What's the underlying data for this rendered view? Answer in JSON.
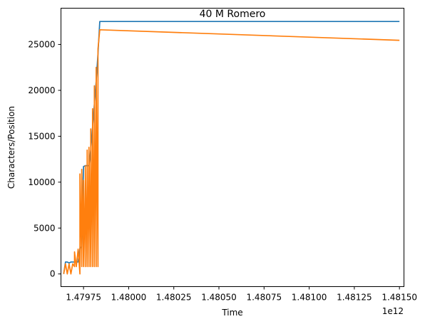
{
  "chart_data": {
    "type": "line",
    "title": "40 M Romero",
    "xlabel": "Time",
    "ylabel": "Characters/Position",
    "x_offset_text": "1e12",
    "xlim": [
      1.479625,
      1.481525
    ],
    "ylim": [
      -1380,
      28950
    ],
    "x_ticks": [
      1.47975,
      1.48,
      1.48025,
      1.4805,
      1.48075,
      1.481,
      1.48125,
      1.4815
    ],
    "x_tick_labels": [
      "1.47975",
      "1.48000",
      "1.48025",
      "1.48050",
      "1.48075",
      "1.48100",
      "1.48125",
      "1.48150"
    ],
    "y_ticks": [
      0,
      5000,
      10000,
      15000,
      20000,
      25000
    ],
    "y_tick_labels": [
      "0",
      "5000",
      "10000",
      "15000",
      "20000",
      "25000"
    ],
    "grid": false,
    "series": [
      {
        "color": "#1f77b4",
        "x": [
          1.47964,
          1.47965,
          1.47966,
          1.47967,
          1.47968,
          1.47969,
          1.4797,
          1.47972,
          1.47973,
          1.47974,
          1.47975,
          1.47976,
          1.47978,
          1.47979,
          1.4798,
          1.47981,
          1.47982,
          1.47983,
          1.47984,
          1.4815
        ],
        "y": [
          0,
          1300,
          1300,
          1200,
          1300,
          1300,
          1300,
          1300,
          2800,
          3000,
          11700,
          11800,
          11800,
          13500,
          16000,
          18500,
          21000,
          24000,
          27500,
          27500
        ]
      },
      {
        "color": "#ff7f0e",
        "x": [
          1.47964,
          1.47965,
          1.47966,
          1.47967,
          1.47968,
          1.47969,
          1.4797,
          1.4797,
          1.47971,
          1.47972,
          1.47973,
          1.47973,
          1.47974,
          1.47974,
          1.47975,
          1.47975,
          1.47976,
          1.47976,
          1.47977,
          1.47977,
          1.47978,
          1.47978,
          1.47979,
          1.47979,
          1.4798,
          1.4798,
          1.47981,
          1.47981,
          1.47982,
          1.47982,
          1.47983,
          1.47983,
          1.47984,
          1.4815
        ],
        "y": [
          0,
          1100,
          0,
          1100,
          0,
          1100,
          800,
          2400,
          800,
          2700,
          0,
          10900,
          800,
          11400,
          800,
          10200,
          800,
          11800,
          800,
          13500,
          800,
          13800,
          800,
          15800,
          800,
          18000,
          800,
          20500,
          800,
          22500,
          800,
          24500,
          26600,
          25450
        ]
      }
    ]
  }
}
